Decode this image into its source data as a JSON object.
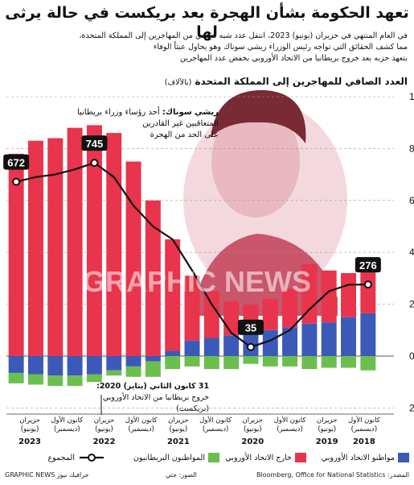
{
  "title": "تعهد الحكومة بشأن الهجرة بعد بريكست في حالة يرثى لها",
  "subtitle_lines": [
    "في العام المنتهي في حزيران (يونيو) 2023، انتقل عدد شبه قياسي من المهاجرين إلى المملكة المتحدة،",
    "مما كشف الحقائق التي تواجه رئيس الوزراء ريشي سوناك وهو يحاول عبثاً الوفاء",
    "بتعهد حزبه بعد خروج بريطانيا من الاتحاد الأوروبي بخفض عدد المهاجرين"
  ],
  "chart_title": "العدد الصافي للمهاجرين إلى المملكة المتحدة",
  "chart_unit": "(بالآلاف)",
  "annotation_sunak": {
    "name": "ريشي سوناك:",
    "line1": "أحد رؤساء وزراء بريطانيا",
    "line2": "المتعاقبين غير القادرين",
    "line3": "على الحد من الهجرة"
  },
  "annotation_brexit": {
    "date": "31 كانون الثاني (يناير) 2020:",
    "line1": "خروج بريطانيا من الاتحاد الأوروبي",
    "line2": "(بريكست)"
  },
  "watermark": "GRAPHIC NEWS",
  "legend": {
    "british": "مواطنو الاتحاد الأوروبي",
    "eu": "خارج الاتحاد الأوروبي",
    "noneu": "المواطنون البريطانيون",
    "total": "المجموع"
  },
  "source": "المصدر: Bloomberg, Office for National Statistics",
  "photo_credit": "الصور: جتي",
  "credit": "جرافيك نيوز GRAPHIC NEWS",
  "colors": {
    "eu": "#3b5ab8",
    "non_eu": "#e8344c",
    "british": "#6bbf4e",
    "total": "#111111",
    "grid": "#9a9a9a"
  },
  "chart_data": {
    "type": "bar",
    "stacked": true,
    "ylim": [
      -200,
      1000
    ],
    "yticks": [
      -200,
      0,
      200,
      400,
      600,
      800,
      1000
    ],
    "grid": true,
    "legend_placement": "bottom",
    "x_labels": [
      {
        "line1": "كانون الأول",
        "line2": "(ديسمبر)",
        "year": "2018"
      },
      {
        "line1": "حزيران",
        "line2": "(يونيو)",
        "year": "2019"
      },
      {
        "line1": "كانون الأول",
        "line2": "(ديسمبر)",
        "year": ""
      },
      {
        "line1": "حزيران",
        "line2": "(يونيو)",
        "year": "2020"
      },
      {
        "line1": "كانون الأول",
        "line2": "(ديسمبر)",
        "year": ""
      },
      {
        "line1": "حزيران",
        "line2": "(يونيو)",
        "year": "2021"
      },
      {
        "line1": "كانون الأول",
        "line2": "(ديسمبر)",
        "year": ""
      },
      {
        "line1": "حزيران",
        "line2": "(يونيو)",
        "year": "2022"
      },
      {
        "line1": "كانون الأول",
        "line2": "(ديسمبر)",
        "year": ""
      },
      {
        "line1": "حزيران",
        "line2": "(يونيو)",
        "year": "2023"
      }
    ],
    "periods_oldest_first": 19,
    "eu": [
      165,
      150,
      130,
      125,
      110,
      100,
      90,
      80,
      70,
      60,
      20,
      -20,
      -40,
      -55,
      -70,
      -75,
      -75,
      -70,
      -65
    ],
    "non_eu": [
      165,
      170,
      200,
      230,
      150,
      120,
      110,
      130,
      180,
      250,
      430,
      600,
      750,
      860,
      890,
      880,
      840,
      830,
      780
    ],
    "british": [
      -55,
      -45,
      -45,
      -50,
      -40,
      -40,
      -30,
      -50,
      -50,
      -40,
      -50,
      -60,
      -40,
      -20,
      -30,
      -40,
      -40,
      -40,
      -40
    ],
    "total": [
      276,
      275,
      250,
      180,
      100,
      60,
      35,
      90,
      200,
      330,
      450,
      500,
      580,
      690,
      745,
      720,
      700,
      690,
      672
    ],
    "labelled_points": [
      {
        "value": 276,
        "index": 0
      },
      {
        "value": 35,
        "index": 6
      },
      {
        "value": 745,
        "index": 14
      },
      {
        "value": 672,
        "index": 18
      }
    ]
  }
}
